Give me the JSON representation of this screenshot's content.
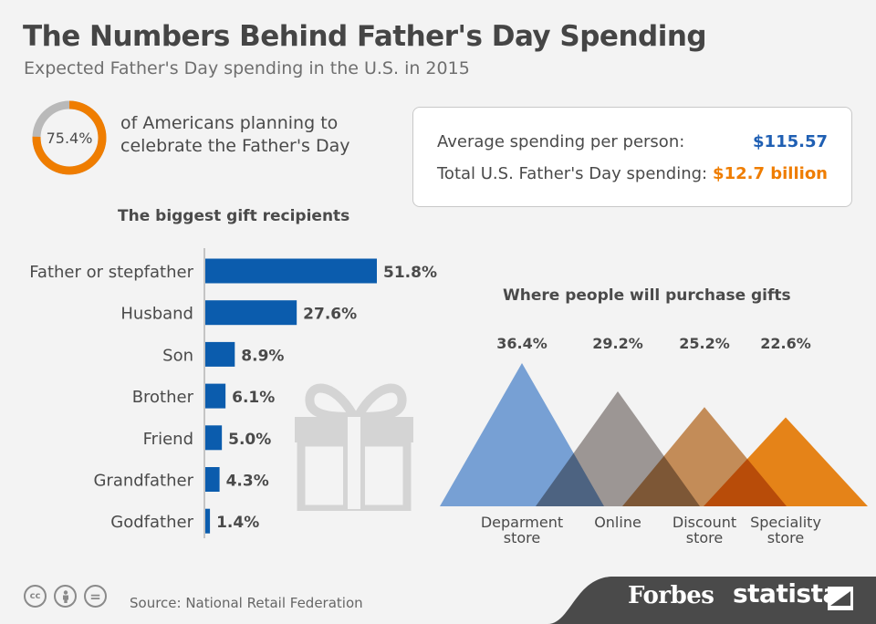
{
  "title": "The Numbers Behind Father's Day Spending",
  "subtitle": "Expected Father's Day spending in the U.S. in 2015",
  "celebrate": {
    "percent_label": "75.4%",
    "percent": 75.4,
    "text_line1": "of Americans planning to",
    "text_line2": "celebrate the Father's Day"
  },
  "stats": {
    "avg_label": "Average spending per person:",
    "avg_value": "$115.57",
    "total_label": "Total U.S. Father's Day spending:",
    "total_value": "$12.7 billion"
  },
  "colors": {
    "orange": "#ef7d00",
    "blue": "#0b5cad",
    "value_blue": "#1f5fb3",
    "gray_ring": "#b9b9b9",
    "gift_icon": "#d4d4d4",
    "footer": "#4a4a4a"
  },
  "chart_data": [
    {
      "type": "bar",
      "orientation": "horizontal",
      "title": "The biggest gift recipients",
      "categories": [
        "Father or stepfather",
        "Husband",
        "Son",
        "Brother",
        "Friend",
        "Grandfather",
        "Godfather"
      ],
      "values": [
        51.8,
        27.6,
        8.9,
        6.1,
        5.0,
        4.3,
        1.4
      ],
      "value_labels": [
        "51.8%",
        "27.6%",
        "8.9%",
        "6.1%",
        "5.0%",
        "4.3%",
        "1.4%"
      ],
      "unit": "%",
      "color": "#0b5cad"
    },
    {
      "type": "area",
      "style": "overlapping-triangles",
      "title": "Where people will purchase gifts",
      "categories": [
        "Deparment store",
        "Online",
        "Discount store",
        "Speciality store"
      ],
      "category_lines": [
        [
          "Deparment",
          "store"
        ],
        [
          "Online"
        ],
        [
          "Discount",
          "store"
        ],
        [
          "Speciality",
          "store"
        ]
      ],
      "values": [
        36.4,
        29.2,
        25.2,
        22.6
      ],
      "value_labels": [
        "36.4%",
        "29.2%",
        "25.2%",
        "22.6%"
      ],
      "unit": "%",
      "colors": [
        "#6f9fdc",
        "#9a9290",
        "#c8874a",
        "#ef7d00"
      ]
    }
  ],
  "source": "Source: National Retail Federation",
  "license_icons": [
    "cc",
    "by",
    "="
  ],
  "brands": {
    "forbes": "Forbes",
    "statista": "statista"
  }
}
